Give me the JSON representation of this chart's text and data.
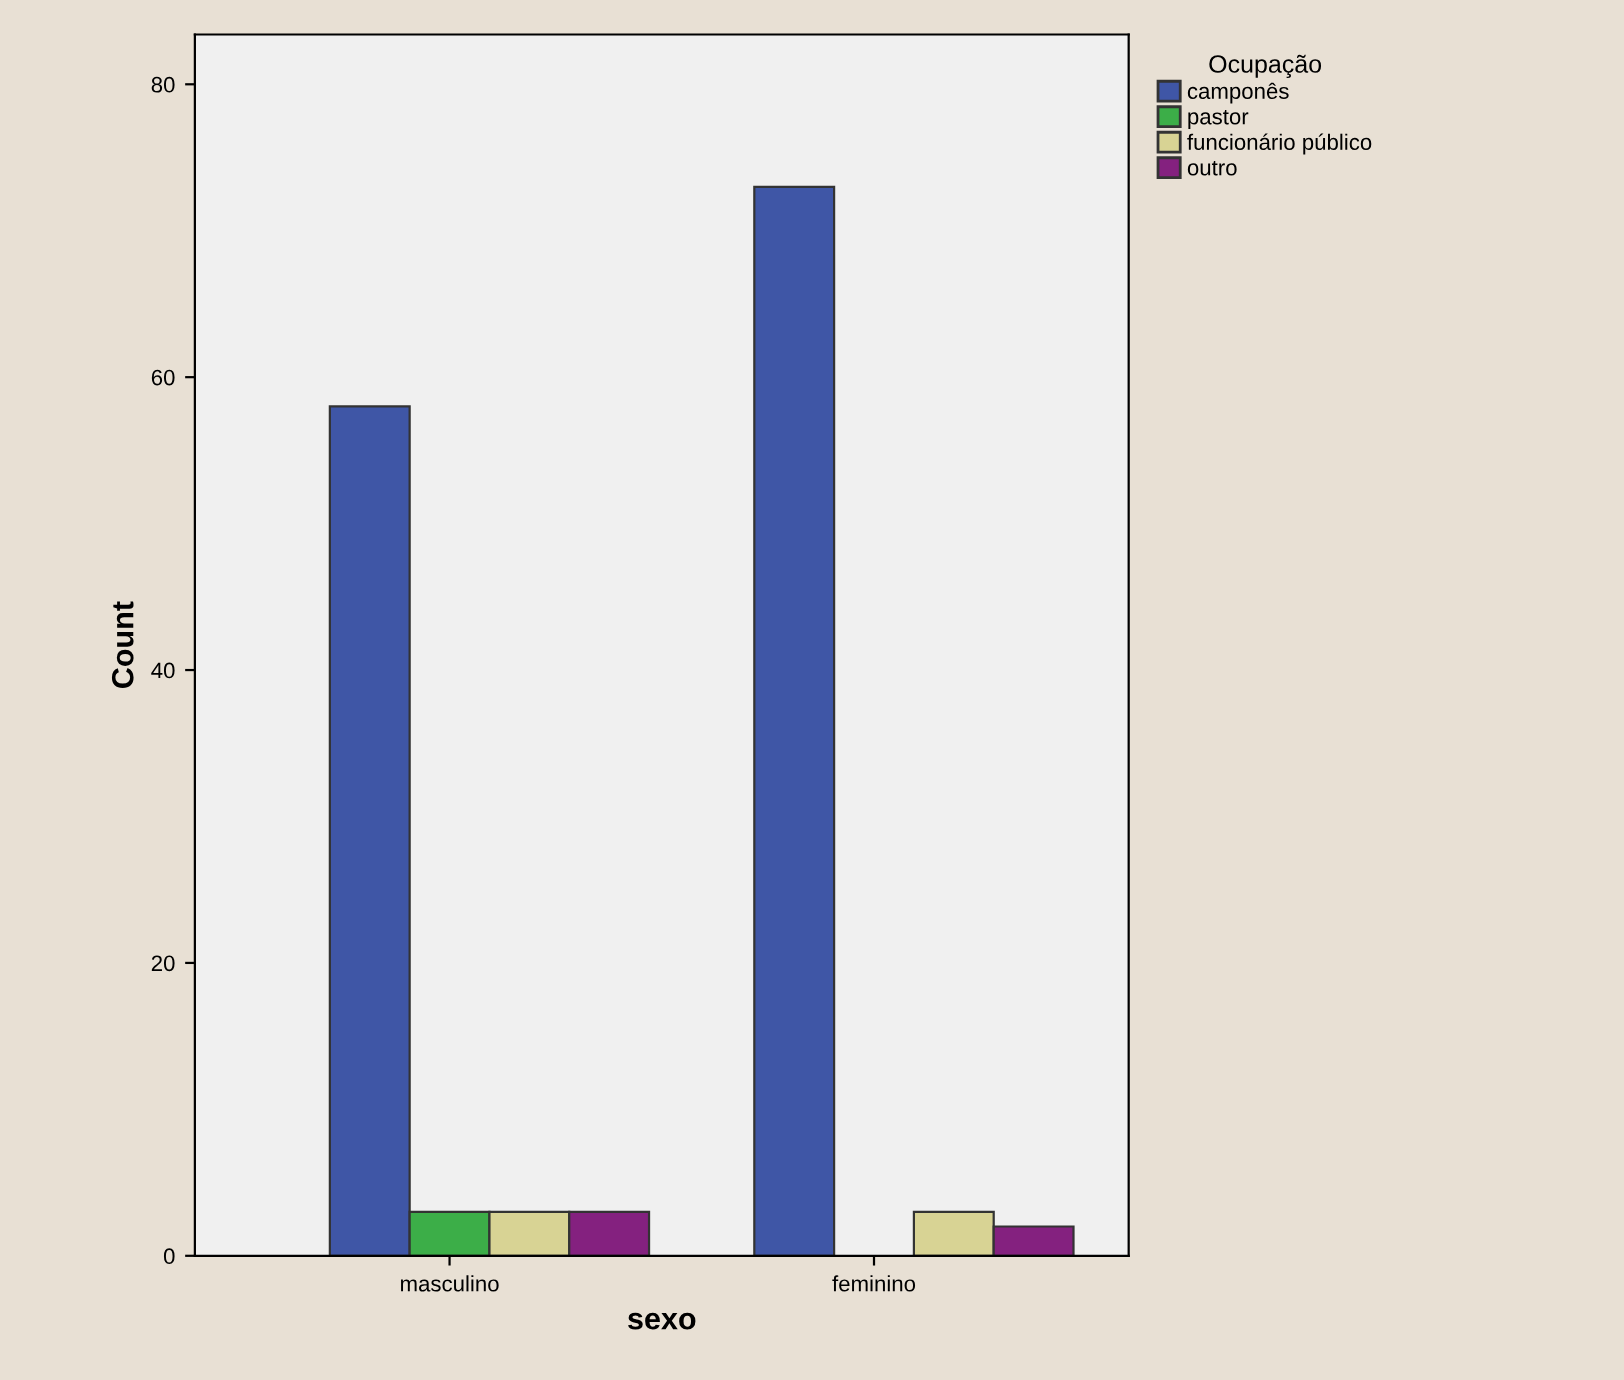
{
  "chart_data": {
    "type": "bar",
    "xlabel": "sexo",
    "ylabel": "Count",
    "legend_title": "Ocupação",
    "categories": [
      "masculino",
      "feminino"
    ],
    "series": [
      {
        "name": "camponês",
        "color": "#3f56a6",
        "values": [
          58,
          73
        ]
      },
      {
        "name": "pastor",
        "color": "#3cae48",
        "values": [
          3,
          null
        ]
      },
      {
        "name": "funcionário público",
        "color": "#d8d394",
        "values": [
          3,
          3
        ]
      },
      {
        "name": "outro",
        "color": "#84217f",
        "values": [
          3,
          2
        ]
      }
    ],
    "ylim": [
      0,
      83.4
    ],
    "yticks": [
      0,
      20,
      40,
      60,
      80
    ],
    "grid": false,
    "legend": "top right"
  }
}
